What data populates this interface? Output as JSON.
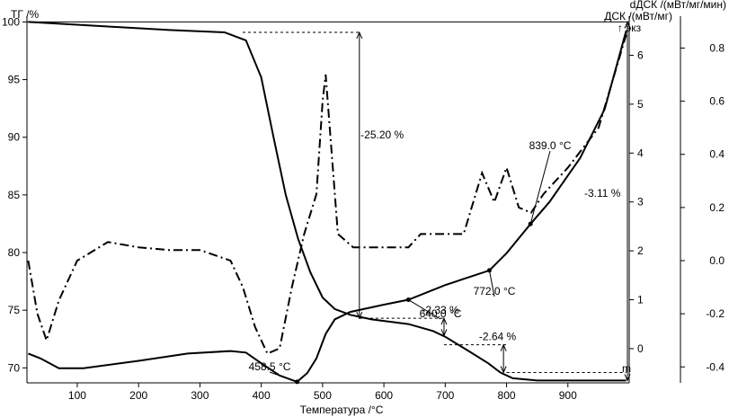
{
  "chart_data": {
    "type": "line",
    "axes": {
      "x": {
        "label": "Температура /°C",
        "range": [
          18,
          1000
        ],
        "ticks": [
          100,
          200,
          300,
          400,
          500,
          600,
          700,
          800,
          900
        ]
      },
      "y_tg": {
        "label": "ТГ /%",
        "range": [
          68.7,
          100.5
        ],
        "ticks": [
          70,
          75,
          80,
          85,
          90,
          95,
          100
        ]
      },
      "y_dsc": {
        "label": "ДСК /(мВт/мг)",
        "range": [
          -0.7,
          6.8
        ],
        "ticks": [
          0,
          1,
          2,
          3,
          4,
          5,
          6
        ]
      },
      "y_ddsc": {
        "label": "dДСК /(мВт/мг/мин)",
        "range": [
          -0.46,
          0.92
        ],
        "ticks": [
          -0.4,
          -0.2,
          0.0,
          0.2,
          0.4,
          0.6,
          0.8
        ]
      },
      "exo_label": "↑ экз"
    },
    "series": [
      {
        "kind": "tg",
        "style": "solid",
        "points": [
          [
            20,
            100
          ],
          [
            150,
            99.6
          ],
          [
            250,
            99.3
          ],
          [
            340,
            99.1
          ],
          [
            375,
            98.4
          ],
          [
            400,
            95.2
          ],
          [
            420,
            90
          ],
          [
            440,
            85
          ],
          [
            460,
            81.2
          ],
          [
            480,
            78.3
          ],
          [
            500,
            76.1
          ],
          [
            520,
            75.1
          ],
          [
            545,
            74.6
          ],
          [
            580,
            74.2
          ],
          [
            640,
            73.8
          ],
          [
            680,
            73.2
          ],
          [
            700,
            72.7
          ],
          [
            740,
            71.4
          ],
          [
            770,
            70.4
          ],
          [
            790,
            69.6
          ],
          [
            810,
            69.1
          ],
          [
            850,
            68.9
          ],
          [
            995,
            68.9
          ]
        ]
      },
      {
        "kind": "dsc",
        "style": "solid",
        "points": [
          [
            20,
            -0.1
          ],
          [
            40,
            -0.2
          ],
          [
            70,
            -0.4
          ],
          [
            110,
            -0.4
          ],
          [
            200,
            -0.25
          ],
          [
            280,
            -0.1
          ],
          [
            350,
            -0.05
          ],
          [
            375,
            -0.08
          ],
          [
            400,
            -0.3
          ],
          [
            430,
            -0.55
          ],
          [
            458.5,
            -0.68
          ],
          [
            475,
            -0.5
          ],
          [
            490,
            -0.2
          ],
          [
            505,
            0.3
          ],
          [
            520,
            0.6
          ],
          [
            545,
            0.75
          ],
          [
            600,
            0.9
          ],
          [
            640,
            1.0
          ],
          [
            700,
            1.3
          ],
          [
            772,
            1.6
          ],
          [
            800,
            1.95
          ],
          [
            839,
            2.55
          ],
          [
            870,
            3.0
          ],
          [
            920,
            3.9
          ],
          [
            960,
            4.9
          ],
          [
            995,
            6.5
          ]
        ]
      },
      {
        "kind": "ddsc",
        "style": "dashdot",
        "points": [
          [
            20,
            0.0
          ],
          [
            35,
            -0.2
          ],
          [
            50,
            -0.3
          ],
          [
            70,
            -0.15
          ],
          [
            100,
            0.0
          ],
          [
            150,
            0.07
          ],
          [
            200,
            0.05
          ],
          [
            250,
            0.04
          ],
          [
            300,
            0.04
          ],
          [
            350,
            0.0
          ],
          [
            370,
            -0.1
          ],
          [
            390,
            -0.25
          ],
          [
            410,
            -0.35
          ],
          [
            430,
            -0.33
          ],
          [
            450,
            -0.1
          ],
          [
            470,
            0.1
          ],
          [
            490,
            0.25
          ],
          [
            500,
            0.6
          ],
          [
            505,
            0.7
          ],
          [
            515,
            0.4
          ],
          [
            525,
            0.1
          ],
          [
            550,
            0.05
          ],
          [
            600,
            0.05
          ],
          [
            640,
            0.05
          ],
          [
            660,
            0.1
          ],
          [
            700,
            0.1
          ],
          [
            730,
            0.1
          ],
          [
            760,
            0.33
          ],
          [
            780,
            0.22
          ],
          [
            800,
            0.35
          ],
          [
            820,
            0.2
          ],
          [
            840,
            0.18
          ],
          [
            860,
            0.25
          ],
          [
            900,
            0.35
          ],
          [
            950,
            0.5
          ],
          [
            995,
            0.85
          ]
        ]
      }
    ],
    "annotations": {
      "tg_mass_change_total": "-25.20 %",
      "tg_mass_change_2": "-2.33 %",
      "tg_mass_change_3": "-2.64 %",
      "tg_mass_change_4": "-3.11 %",
      "tg_mass_change_5": "m",
      "dsc_peak_1": "458.5 °C",
      "dsc_onset_1": "640.0 °C",
      "dsc_onset_2": "772.0 °C",
      "dsc_onset_3": "839.0 °C"
    },
    "grid": false
  }
}
